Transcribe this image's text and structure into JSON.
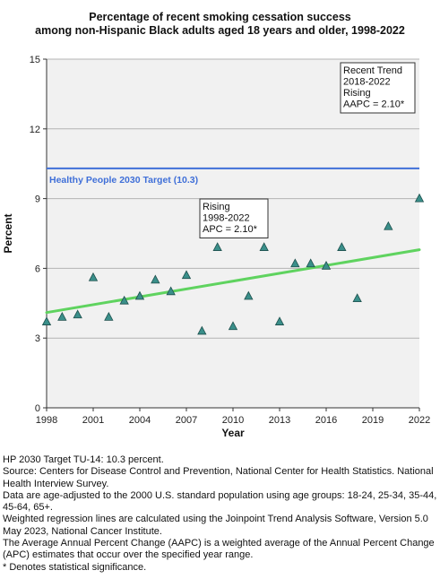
{
  "chart_data": {
    "type": "scatter",
    "title": "Percentage of recent smoking cessation success",
    "subtitle": "among non-Hispanic Black adults aged 18 years and older, 1998-2022",
    "xlabel": "Year",
    "ylabel": "Percent",
    "xlim": [
      1998,
      2022
    ],
    "ylim": [
      0,
      15
    ],
    "x_ticks": [
      1998,
      2001,
      2004,
      2007,
      2010,
      2013,
      2016,
      2019,
      2022
    ],
    "y_ticks": [
      0,
      3,
      6,
      9,
      12,
      15
    ],
    "grid": true,
    "series": [
      {
        "marker": "triangle",
        "color": "#3a8f8a",
        "points": [
          {
            "x": 1998,
            "y": 3.7
          },
          {
            "x": 1999,
            "y": 3.9
          },
          {
            "x": 2000,
            "y": 4.0
          },
          {
            "x": 2001,
            "y": 5.6
          },
          {
            "x": 2002,
            "y": 3.9
          },
          {
            "x": 2003,
            "y": 4.6
          },
          {
            "x": 2004,
            "y": 4.8
          },
          {
            "x": 2005,
            "y": 5.5
          },
          {
            "x": 2006,
            "y": 5.0
          },
          {
            "x": 2007,
            "y": 5.7
          },
          {
            "x": 2008,
            "y": 3.3
          },
          {
            "x": 2009,
            "y": 6.9
          },
          {
            "x": 2010,
            "y": 3.5
          },
          {
            "x": 2011,
            "y": 4.8
          },
          {
            "x": 2012,
            "y": 6.9
          },
          {
            "x": 2013,
            "y": 3.7
          },
          {
            "x": 2014,
            "y": 6.2
          },
          {
            "x": 2015,
            "y": 6.2
          },
          {
            "x": 2016,
            "y": 6.1
          },
          {
            "x": 2017,
            "y": 6.9
          },
          {
            "x": 2018,
            "y": 4.7
          },
          {
            "x": 2020,
            "y": 7.8
          },
          {
            "x": 2022,
            "y": 9.0
          }
        ]
      },
      {
        "type": "line",
        "color": "#5fd35f",
        "x": [
          1998,
          2022
        ],
        "y": [
          4.1,
          6.8
        ]
      }
    ],
    "reference_line": {
      "y": 10.3,
      "label": "Healthy People 2030 Target (10.3)",
      "color": "#3f6fd8"
    },
    "annotations": [
      {
        "lines": [
          "Recent Trend",
          "2018-2022",
          "Rising",
          "AAPC =  2.10*"
        ],
        "placement": "top-right"
      },
      {
        "lines": [
          "Rising",
          "1998-2022",
          "APC =  2.10*"
        ],
        "placement": "middle"
      }
    ]
  },
  "footnotes": [
    "HP 2030 Target TU-14: 10.3 percent.",
    "Source: Centers for Disease Control and Prevention, National Center for Health Statistics. National Health Interview Survey.",
    "Data are age-adjusted to the 2000 U.S. standard population using age groups: 18-24, 25-34, 35-44, 45-64, 65+.",
    "Weighted regression lines are calculated using the Joinpoint Trend Analysis Software, Version 5.0 May 2023, National Cancer Institute.",
    "The Average Annual Percent Change (AAPC) is a weighted average of the Annual Percent Change (APC) estimates that occur over the specified year range.",
    "* Denotes statistical significance."
  ]
}
